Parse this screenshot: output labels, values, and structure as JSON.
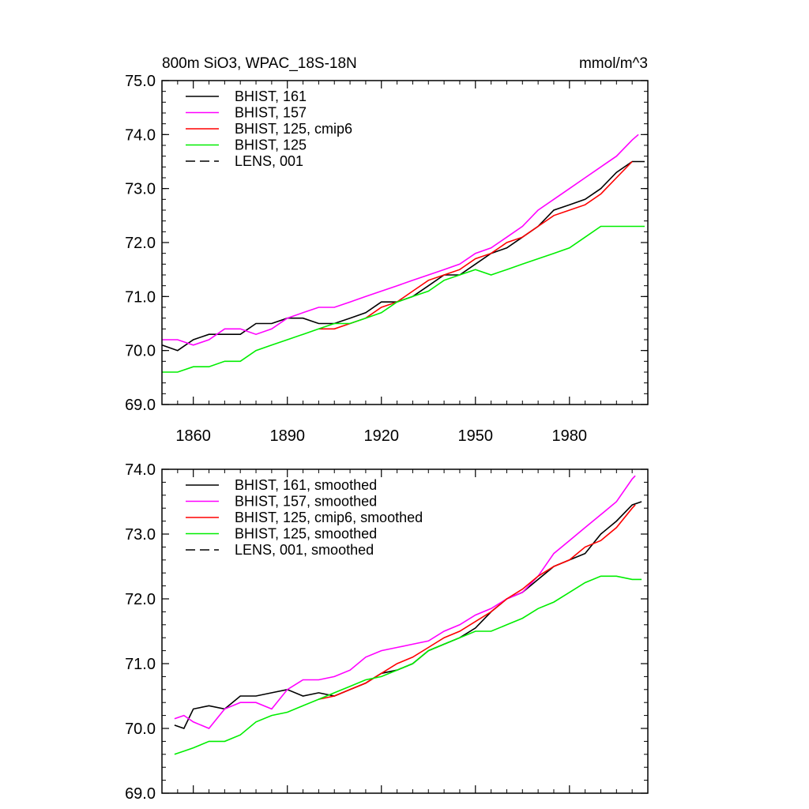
{
  "figure": {
    "title_left": "800m SiO3, WPAC_18S-18N",
    "title_right": "mmol/m^3"
  },
  "chart_data": [
    {
      "type": "line",
      "title": "800m SiO3, WPAC_18S-18N",
      "units": "mmol/m^3",
      "xlim": [
        1850,
        2005
      ],
      "ylim": [
        69.0,
        75.0
      ],
      "xticks": [
        1860,
        1890,
        1920,
        1950,
        1980
      ],
      "xtick_labels": [
        "1860",
        "1890",
        "1920",
        "1950",
        "1980"
      ],
      "yticks": [
        69,
        70,
        71,
        72,
        73,
        74,
        75
      ],
      "ytick_labels": [
        "69.0",
        "70.0",
        "71.0",
        "72.0",
        "73.0",
        "74.0",
        "75.0"
      ],
      "grid": false,
      "legend_placement": "top-left",
      "series": [
        {
          "name": "BHIST, 161",
          "color": "#000000",
          "dash": "solid",
          "x": [
            1850,
            1855,
            1860,
            1865,
            1870,
            1875,
            1880,
            1885,
            1890,
            1895,
            1900,
            1905,
            1910,
            1915,
            1920,
            1925,
            1930,
            1935,
            1940,
            1945,
            1950,
            1955,
            1960,
            1965,
            1970,
            1975,
            1980,
            1985,
            1990,
            1995,
            2000,
            2004
          ],
          "y": [
            70.1,
            70.0,
            70.2,
            70.3,
            70.3,
            70.3,
            70.5,
            70.5,
            70.6,
            70.6,
            70.5,
            70.5,
            70.6,
            70.7,
            70.9,
            70.9,
            71.0,
            71.2,
            71.4,
            71.4,
            71.6,
            71.8,
            71.9,
            72.1,
            72.3,
            72.6,
            72.7,
            72.8,
            73.0,
            73.3,
            73.5,
            73.5
          ]
        },
        {
          "name": "BHIST, 157",
          "color": "#ff00ff",
          "dash": "solid",
          "x": [
            1850,
            1855,
            1860,
            1865,
            1870,
            1875,
            1880,
            1885,
            1890,
            1895,
            1900,
            1905,
            1910,
            1915,
            1920,
            1925,
            1930,
            1935,
            1940,
            1945,
            1950,
            1955,
            1960,
            1965,
            1970,
            1975,
            1980,
            1985,
            1990,
            1995,
            2000,
            2002
          ],
          "y": [
            70.2,
            70.2,
            70.1,
            70.2,
            70.4,
            70.4,
            70.3,
            70.4,
            70.6,
            70.7,
            70.8,
            70.8,
            70.9,
            71.0,
            71.1,
            71.2,
            71.3,
            71.4,
            71.5,
            71.6,
            71.8,
            71.9,
            72.1,
            72.3,
            72.6,
            72.8,
            73.0,
            73.2,
            73.4,
            73.6,
            73.9,
            74.0
          ]
        },
        {
          "name": "BHIST, 125, cmip6",
          "color": "#ff0000",
          "dash": "solid",
          "x": [
            1900,
            1905,
            1910,
            1915,
            1920,
            1925,
            1930,
            1935,
            1940,
            1945,
            1950,
            1955,
            1960,
            1965,
            1970,
            1975,
            1980,
            1985,
            1990,
            1995,
            2000
          ],
          "y": [
            70.4,
            70.4,
            70.5,
            70.6,
            70.8,
            70.9,
            71.1,
            71.3,
            71.4,
            71.5,
            71.7,
            71.8,
            72.0,
            72.1,
            72.3,
            72.5,
            72.6,
            72.7,
            72.9,
            73.2,
            73.5
          ]
        },
        {
          "name": "BHIST, 125",
          "color": "#00ee00",
          "dash": "solid",
          "x": [
            1850,
            1855,
            1860,
            1865,
            1870,
            1875,
            1880,
            1885,
            1890,
            1895,
            1900,
            1905,
            1910,
            1915,
            1920,
            1925,
            1930,
            1935,
            1940,
            1945,
            1950,
            1955,
            1960,
            1965,
            1970,
            1975,
            1980,
            1985,
            1990,
            1995,
            2000,
            2004
          ],
          "y": [
            69.6,
            69.6,
            69.7,
            69.7,
            69.8,
            69.8,
            70.0,
            70.1,
            70.2,
            70.3,
            70.4,
            70.5,
            70.5,
            70.6,
            70.7,
            70.9,
            71.0,
            71.1,
            71.3,
            71.4,
            71.5,
            71.4,
            71.5,
            71.6,
            71.7,
            71.8,
            71.9,
            72.1,
            72.3,
            72.3,
            72.3,
            72.3
          ]
        }
      ],
      "legend_entries": [
        {
          "label": "BHIST, 161",
          "color": "#000000",
          "dash": "solid"
        },
        {
          "label": "BHIST, 157",
          "color": "#ff00ff",
          "dash": "solid"
        },
        {
          "label": "BHIST, 125, cmip6",
          "color": "#ff0000",
          "dash": "solid"
        },
        {
          "label": "BHIST, 125",
          "color": "#00ee00",
          "dash": "solid"
        },
        {
          "label": "LENS, 001",
          "color": "#000000",
          "dash": "dashed"
        }
      ]
    },
    {
      "type": "line",
      "xlim": [
        1850,
        2005
      ],
      "ylim": [
        69.0,
        74.0
      ],
      "xticks": [
        1860,
        1890,
        1920,
        1950,
        1980
      ],
      "yticks": [
        69,
        70,
        71,
        72,
        73,
        74
      ],
      "ytick_labels": [
        "69.0",
        "70.0",
        "71.0",
        "72.0",
        "73.0",
        "74.0"
      ],
      "grid": false,
      "legend_placement": "top-left",
      "series": [
        {
          "name": "BHIST, 161, smoothed",
          "color": "#000000",
          "dash": "solid",
          "x": [
            1854,
            1857,
            1860,
            1865,
            1870,
            1875,
            1880,
            1885,
            1890,
            1895,
            1900,
            1905,
            1910,
            1915,
            1920,
            1925,
            1930,
            1935,
            1940,
            1945,
            1950,
            1955,
            1960,
            1965,
            1970,
            1975,
            1980,
            1985,
            1990,
            1995,
            2000,
            2003
          ],
          "y": [
            70.05,
            70.0,
            70.3,
            70.35,
            70.3,
            70.5,
            70.5,
            70.55,
            70.6,
            70.5,
            70.55,
            70.5,
            70.6,
            70.7,
            70.85,
            70.9,
            71.0,
            71.2,
            71.3,
            71.4,
            71.55,
            71.8,
            72.0,
            72.1,
            72.3,
            72.5,
            72.6,
            72.7,
            73.0,
            73.2,
            73.45,
            73.5
          ]
        },
        {
          "name": "BHIST, 157, smoothed",
          "color": "#ff00ff",
          "dash": "solid",
          "x": [
            1854,
            1857,
            1860,
            1865,
            1870,
            1875,
            1880,
            1885,
            1890,
            1895,
            1900,
            1905,
            1910,
            1915,
            1920,
            1925,
            1930,
            1935,
            1940,
            1945,
            1950,
            1955,
            1960,
            1965,
            1970,
            1975,
            1980,
            1985,
            1990,
            1995,
            2000,
            2001
          ],
          "y": [
            70.15,
            70.2,
            70.1,
            70.0,
            70.3,
            70.4,
            70.4,
            70.3,
            70.6,
            70.75,
            70.75,
            70.8,
            70.9,
            71.1,
            71.2,
            71.25,
            71.3,
            71.35,
            71.5,
            71.6,
            71.75,
            71.85,
            72.0,
            72.1,
            72.35,
            72.7,
            72.9,
            73.1,
            73.3,
            73.5,
            73.85,
            73.9
          ]
        },
        {
          "name": "BHIST, 125, cmip6, smoothed",
          "color": "#ff0000",
          "dash": "solid",
          "x": [
            1900,
            1905,
            1910,
            1915,
            1920,
            1925,
            1930,
            1935,
            1940,
            1945,
            1950,
            1955,
            1960,
            1965,
            1970,
            1975,
            1980,
            1985,
            1990,
            1995,
            2000,
            2001
          ],
          "y": [
            70.45,
            70.5,
            70.6,
            70.7,
            70.85,
            71.0,
            71.1,
            71.25,
            71.4,
            71.5,
            71.65,
            71.8,
            72.0,
            72.15,
            72.35,
            72.5,
            72.6,
            72.8,
            72.9,
            73.1,
            73.4,
            73.45
          ]
        },
        {
          "name": "BHIST, 125, smoothed",
          "color": "#00ee00",
          "dash": "solid",
          "x": [
            1854,
            1857,
            1860,
            1865,
            1870,
            1875,
            1880,
            1885,
            1890,
            1895,
            1900,
            1905,
            1910,
            1915,
            1920,
            1925,
            1930,
            1935,
            1940,
            1945,
            1950,
            1955,
            1960,
            1965,
            1970,
            1975,
            1980,
            1985,
            1990,
            1995,
            2000,
            2003
          ],
          "y": [
            69.6,
            69.65,
            69.7,
            69.8,
            69.8,
            69.9,
            70.1,
            70.2,
            70.25,
            70.35,
            70.45,
            70.55,
            70.65,
            70.75,
            70.8,
            70.9,
            71.0,
            71.2,
            71.3,
            71.4,
            71.5,
            71.5,
            71.6,
            71.7,
            71.85,
            71.95,
            72.1,
            72.25,
            72.35,
            72.35,
            72.3,
            72.3
          ]
        }
      ],
      "legend_entries": [
        {
          "label": "BHIST, 161, smoothed",
          "color": "#000000",
          "dash": "solid"
        },
        {
          "label": "BHIST, 157, smoothed",
          "color": "#ff00ff",
          "dash": "solid"
        },
        {
          "label": "BHIST, 125, cmip6, smoothed",
          "color": "#ff0000",
          "dash": "solid"
        },
        {
          "label": "BHIST, 125, smoothed",
          "color": "#00ee00",
          "dash": "solid"
        },
        {
          "label": "LENS, 001, smoothed",
          "color": "#000000",
          "dash": "dashed"
        }
      ]
    }
  ]
}
